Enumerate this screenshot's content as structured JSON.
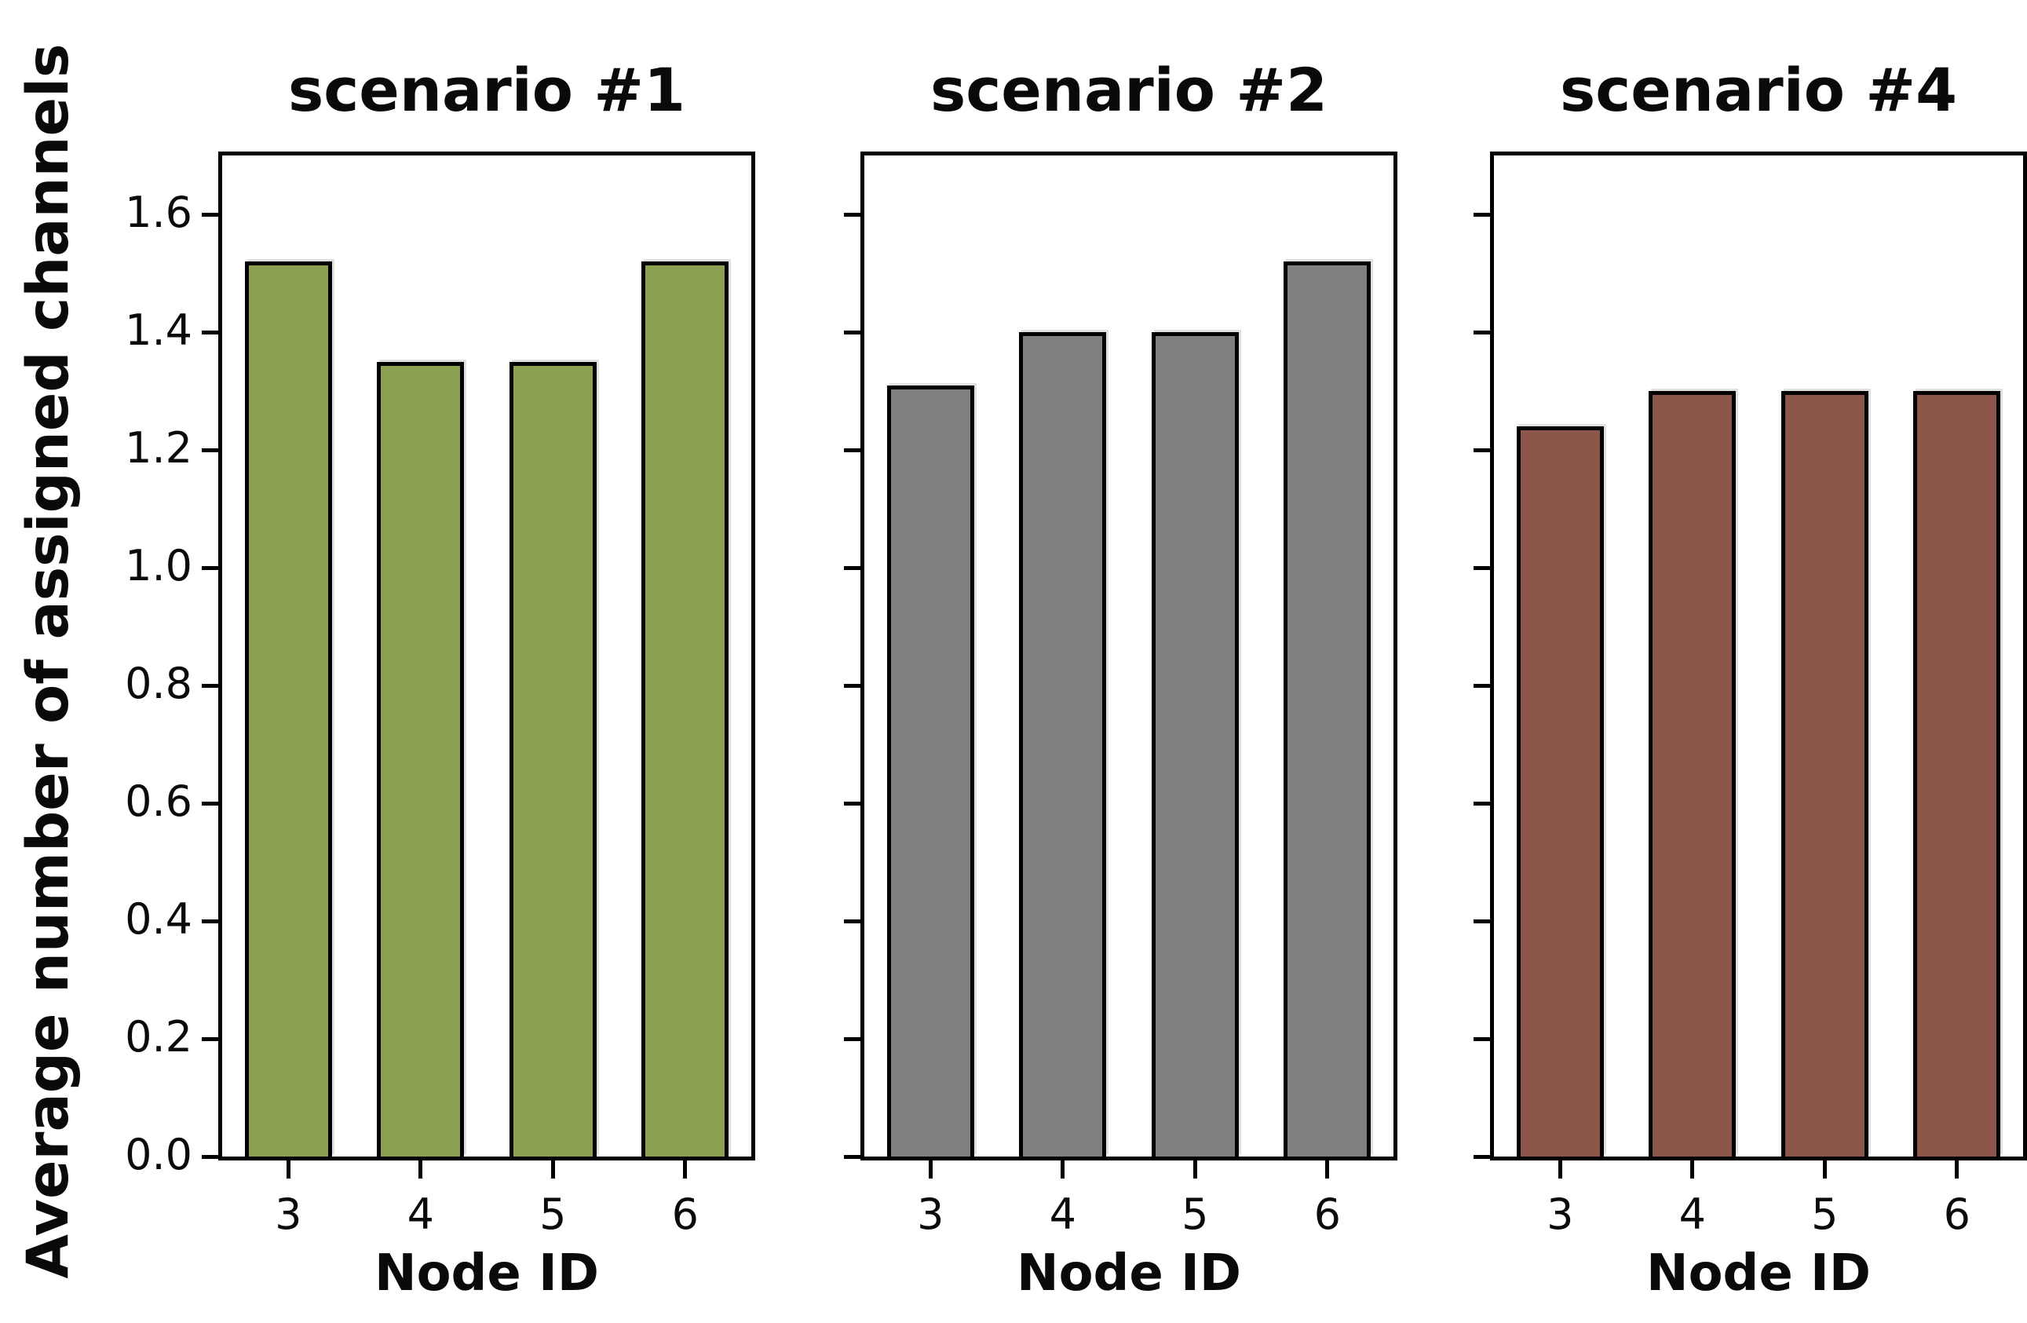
{
  "figure": {
    "ylabel": "Average number of assigned channels",
    "background": "#ffffff",
    "axis_color": "#000000",
    "bar_edge_color": "#000000"
  },
  "chart_data": [
    {
      "type": "bar",
      "title": "scenario #1",
      "categories": [
        "3",
        "4",
        "5",
        "6"
      ],
      "values": [
        1.52,
        1.35,
        1.35,
        1.52
      ],
      "color": "#8ca052",
      "xlabel": "Node ID",
      "ylabel": "Average number of assigned channels",
      "ylim": [
        0,
        1.7
      ],
      "yticks": [
        0.0,
        0.2,
        0.4,
        0.6,
        0.8,
        1.0,
        1.2,
        1.4,
        1.6
      ],
      "ytick_labels": [
        "0.0",
        "0.2",
        "0.4",
        "0.6",
        "0.8",
        "1.0",
        "1.2",
        "1.4",
        "1.6"
      ],
      "show_ytick_labels": true,
      "grid": false,
      "legend": "none"
    },
    {
      "type": "bar",
      "title": "scenario #2",
      "categories": [
        "3",
        "4",
        "5",
        "6"
      ],
      "values": [
        1.31,
        1.4,
        1.4,
        1.52
      ],
      "color": "#7f7f7f",
      "xlabel": "Node ID",
      "ylabel": "Average number of assigned channels",
      "ylim": [
        0,
        1.7
      ],
      "yticks": [
        0.0,
        0.2,
        0.4,
        0.6,
        0.8,
        1.0,
        1.2,
        1.4,
        1.6
      ],
      "ytick_labels": [],
      "show_ytick_labels": false,
      "grid": false,
      "legend": "none"
    },
    {
      "type": "bar",
      "title": "scenario #4",
      "categories": [
        "3",
        "4",
        "5",
        "6"
      ],
      "values": [
        1.24,
        1.3,
        1.3,
        1.3
      ],
      "color": "#8c564b",
      "xlabel": "Node ID",
      "ylabel": "Average number of assigned channels",
      "ylim": [
        0,
        1.7
      ],
      "yticks": [
        0.0,
        0.2,
        0.4,
        0.6,
        0.8,
        1.0,
        1.2,
        1.4,
        1.6
      ],
      "ytick_labels": [],
      "show_ytick_labels": false,
      "grid": false,
      "legend": "none"
    }
  ]
}
